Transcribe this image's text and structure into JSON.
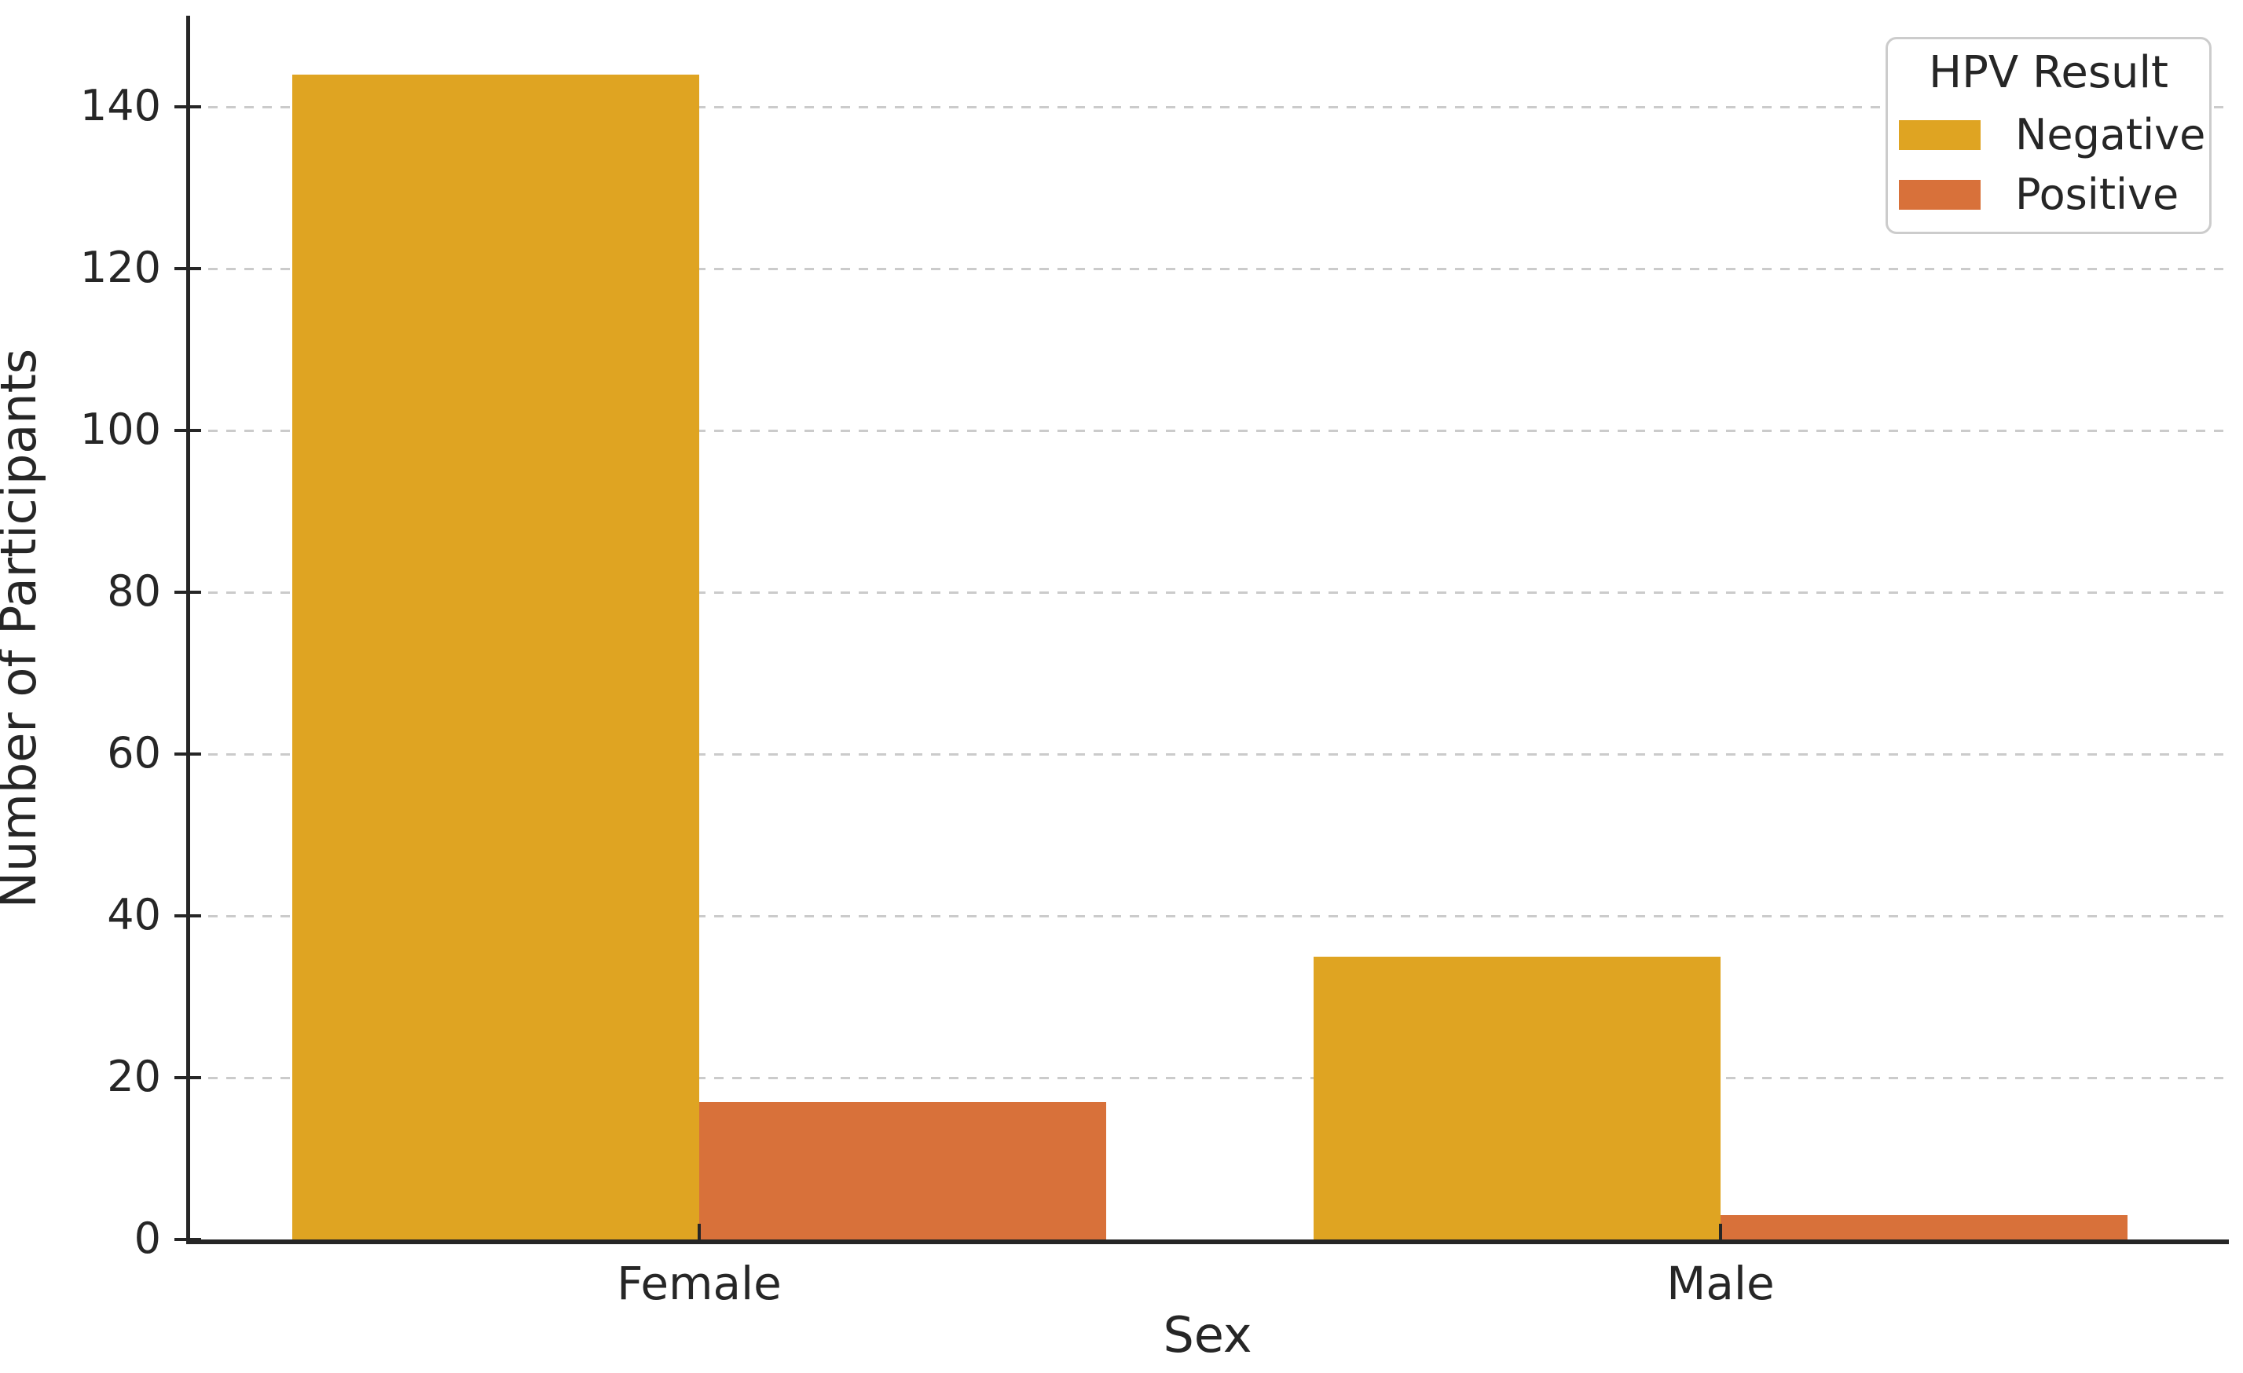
{
  "chart_data": {
    "type": "bar",
    "categories": [
      "Female",
      "Male"
    ],
    "series": [
      {
        "name": "Negative",
        "color": "#DFA422",
        "values": [
          144,
          35
        ]
      },
      {
        "name": "Positive",
        "color": "#D8713A",
        "values": [
          17,
          3
        ]
      }
    ],
    "title": "",
    "xlabel": "Sex",
    "ylabel": "Number of Participants",
    "ylim": [
      0,
      151
    ],
    "yticks": [
      0,
      20,
      40,
      60,
      80,
      100,
      120,
      140
    ],
    "grid": "horizontal-dashed",
    "legend": {
      "title": "HPV Result",
      "position": "upper-right",
      "entries": [
        "Negative",
        "Positive"
      ]
    }
  },
  "colors": {
    "axis": "#262626",
    "grid": "#cbcbcb",
    "background": "#ffffff",
    "negative": "#DFA422",
    "positive": "#D8713A"
  }
}
